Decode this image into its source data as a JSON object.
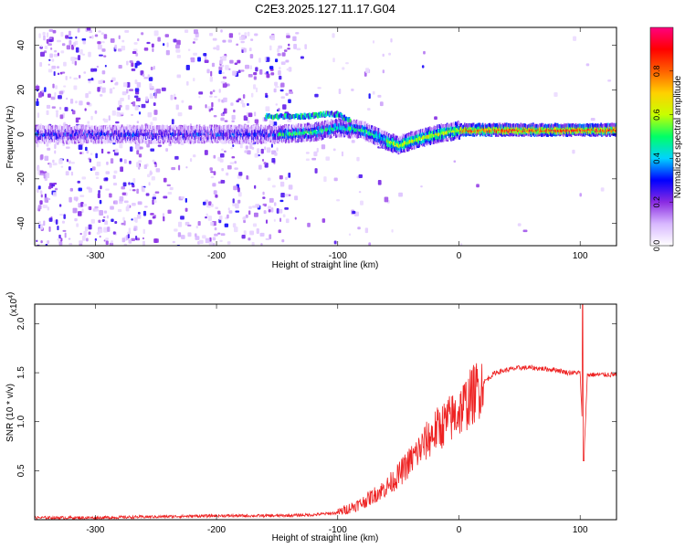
{
  "title": "C2E3.2025.127.11.17.G04",
  "chart_data": [
    {
      "type": "heatmap",
      "xlabel": "Height of straight line (km)",
      "ylabel": "Frequency (Hz)",
      "xlim": [
        -350,
        130
      ],
      "ylim": [
        -50,
        48
      ],
      "xticks": [
        -300,
        -200,
        -100,
        0,
        100
      ],
      "yticks": [
        -40,
        -20,
        0,
        20,
        40
      ],
      "colorbar": {
        "label": "Normalized spectral amplitude",
        "range": [
          0,
          1
        ],
        "ticks": [
          "0.0",
          "0.2",
          "0.4",
          "0.6",
          "0.8"
        ],
        "tick_values": [
          0,
          0.2,
          0.4,
          0.6,
          0.8
        ],
        "colormap": [
          "#ffffff",
          "#d8b8ff",
          "#8a2be2",
          "#0000ff",
          "#00d2ff",
          "#00ff66",
          "#c8ff00",
          "#ffd000",
          "#ff6000",
          "#ff0000",
          "#ff0080"
        ]
      },
      "ridge": {
        "x": [
          -350,
          -300,
          -250,
          -200,
          -150,
          -120,
          -100,
          -80,
          -60,
          -50,
          -40,
          -20,
          0,
          20,
          50,
          80,
          100,
          130
        ],
        "freq": [
          0,
          0,
          0,
          0,
          0,
          1,
          3,
          2,
          -3,
          -5,
          -3,
          0,
          2,
          2,
          2,
          2,
          2,
          2
        ],
        "branch_x": [
          -160,
          -130,
          -110,
          -100,
          -90
        ],
        "branch_freq": [
          8,
          8,
          9,
          9,
          6
        ]
      }
    },
    {
      "type": "line",
      "xlabel": "Height of straight line (km)",
      "ylabel": "SNR (10 * v/v)",
      "scale_label": "(x10",
      "scale_exp": "4",
      "xlim": [
        -350,
        130
      ],
      "ylim": [
        0,
        2.2
      ],
      "xticks": [
        -300,
        -200,
        -100,
        0,
        100
      ],
      "yticks": [
        0.5,
        1.0,
        1.5,
        2.0
      ],
      "ytick_labels": [
        "0.5",
        "1.0",
        "1.5",
        "2.0"
      ],
      "color": "#ee2222",
      "series": [
        {
          "x": [
            -350,
            -300,
            -250,
            -200,
            -150,
            -120,
            -100,
            -90,
            -80,
            -70,
            -60,
            -50,
            -40,
            -30,
            -20,
            -10,
            0,
            10,
            20,
            30,
            40,
            50,
            60,
            70,
            80,
            90,
            100,
            103,
            106,
            110,
            120,
            130
          ],
          "values": [
            0.02,
            0.02,
            0.03,
            0.04,
            0.04,
            0.05,
            0.07,
            0.12,
            0.17,
            0.25,
            0.33,
            0.45,
            0.6,
            0.75,
            0.9,
            1.0,
            1.1,
            1.25,
            1.4,
            1.5,
            1.53,
            1.55,
            1.55,
            1.54,
            1.53,
            1.5,
            1.5,
            0.6,
            1.48,
            1.48,
            1.48,
            1.48
          ]
        }
      ]
    }
  ]
}
